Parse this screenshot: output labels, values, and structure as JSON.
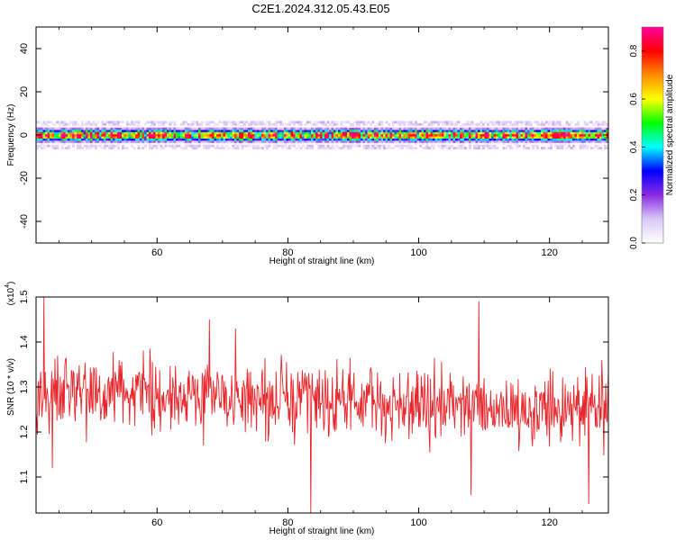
{
  "page_title": "C2E1.2024.312.05.43.E05",
  "chart_data": [
    {
      "type": "heatmap",
      "title": "C2E1.2024.312.05.43.E05",
      "xlabel": "Height of straight line (km)",
      "ylabel": "Frequency (Hz)",
      "xlim": [
        41.5,
        129
      ],
      "ylim": [
        -50,
        50
      ],
      "x_ticks": [
        60,
        80,
        100,
        120
      ],
      "y_ticks": [
        40,
        20,
        0,
        -20,
        -40
      ],
      "band_center_hz": 0,
      "band_halfwidth_hz": 5,
      "colorbar": {
        "label": "Normalized spectral amplitude",
        "range": [
          0,
          0.9
        ],
        "ticks": [
          0.0,
          0.2,
          0.4,
          0.6,
          0.8
        ],
        "colors": [
          "#ffffff",
          "#d9c8f5",
          "#8a2be2",
          "#0000ff",
          "#00ffff",
          "#00ff00",
          "#ffff00",
          "#ff8c00",
          "#ff0000",
          "#ff00a0"
        ]
      }
    },
    {
      "type": "line",
      "xlabel": "Height of straight line (km)",
      "ylabel": "SNR (10 * v/v)",
      "y_multiplier": "(x10",
      "y_multiplier_exp": "4",
      "y_multiplier_close": ")",
      "xlim": [
        41.5,
        129
      ],
      "ylim": [
        1.02,
        1.5
      ],
      "x_ticks": [
        60,
        80,
        100,
        120
      ],
      "y_ticks": [
        1.1,
        1.2,
        1.3,
        1.4,
        1.5
      ],
      "series": [
        {
          "color": "#e8252a",
          "x_start": 41.5,
          "x_step": 0.1,
          "mean_profile": [
            [
              41.5,
              1.285
            ],
            [
              70,
              1.275
            ],
            [
              100,
              1.26
            ],
            [
              129,
              1.245
            ]
          ],
          "spread": 0.085,
          "notable_points": [
            [
              42.7,
              1.5
            ],
            [
              44.0,
              1.12
            ],
            [
              68.0,
              1.45
            ],
            [
              72.0,
              1.43
            ],
            [
              83.5,
              1.02
            ],
            [
              109.2,
              1.49
            ],
            [
              108.0,
              1.06
            ],
            [
              126.0,
              1.04
            ],
            [
              128.0,
              1.36
            ]
          ]
        }
      ]
    }
  ]
}
